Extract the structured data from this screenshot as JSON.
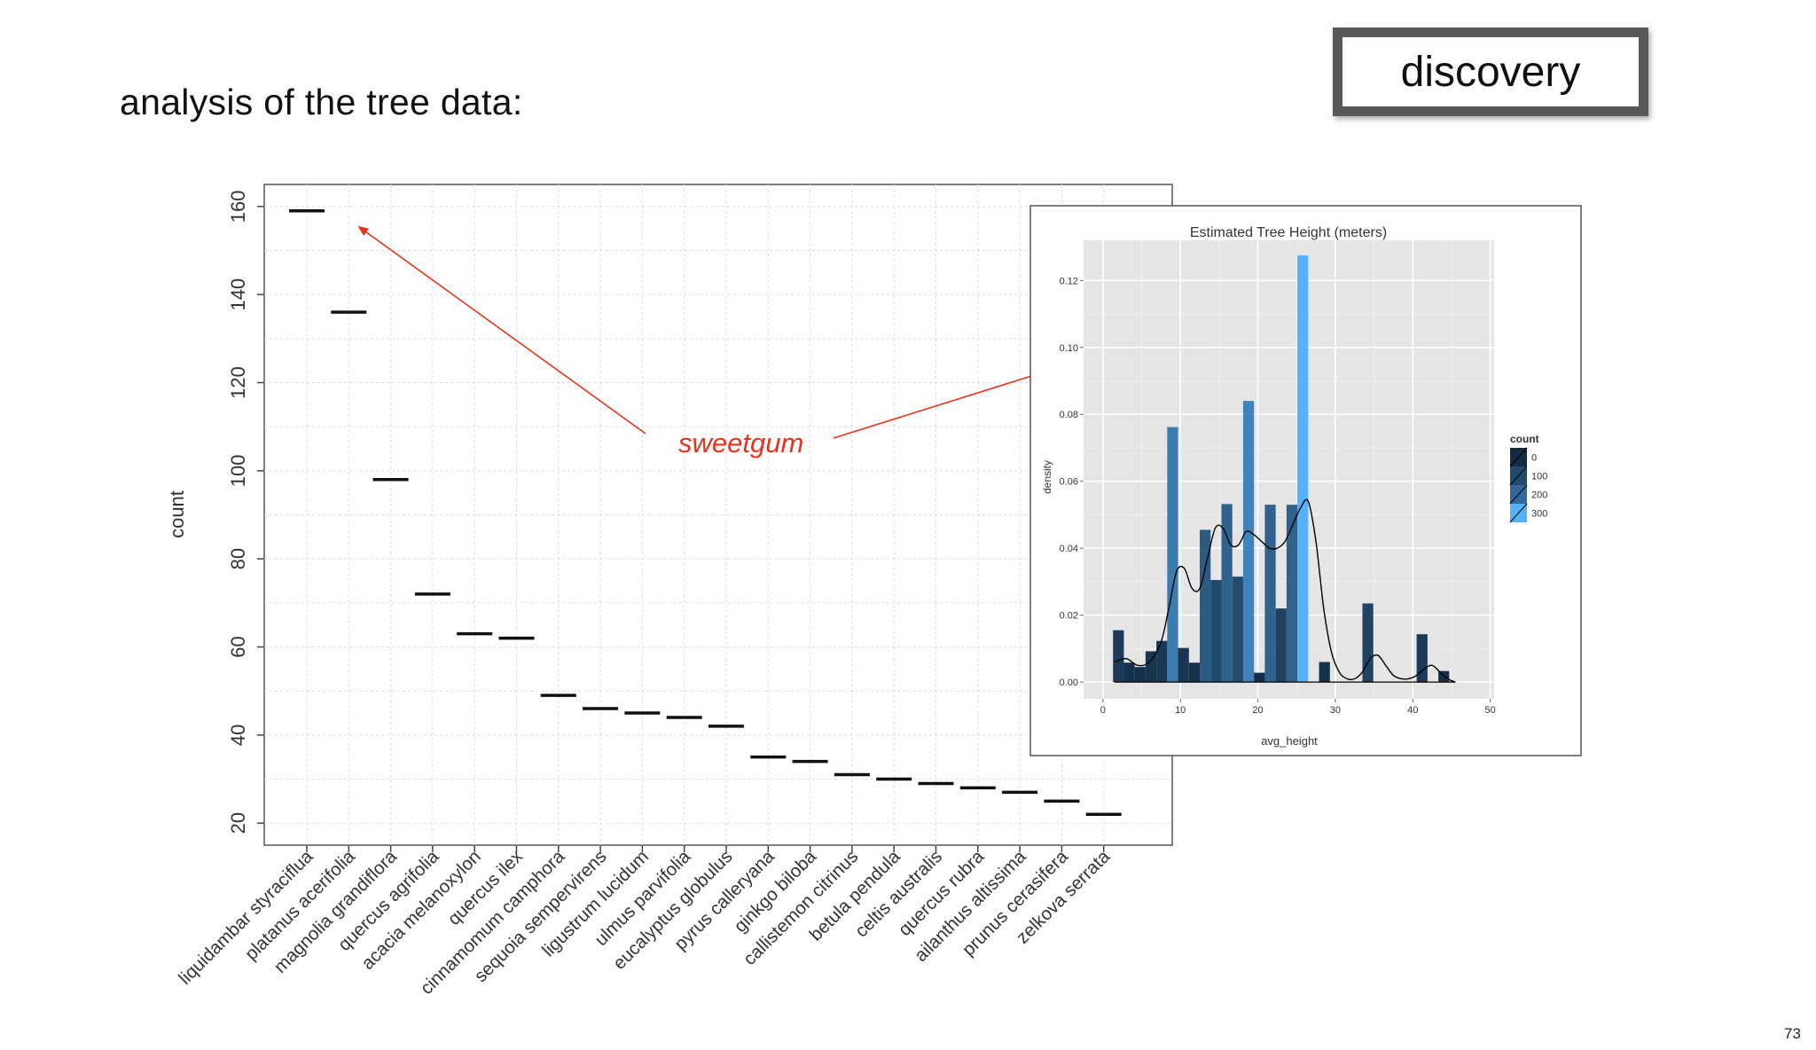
{
  "slide": {
    "title": "analysis of the tree data:",
    "tag": "discovery",
    "page_number": "73"
  },
  "annotation": {
    "text": "sweetgum",
    "color": "#e8321c"
  },
  "chart_data": [
    {
      "type": "scatter",
      "marker": "horizontal dash",
      "title": "",
      "xlabel": "",
      "ylabel": "count",
      "ylim": [
        15,
        165
      ],
      "yticks": [
        20,
        40,
        60,
        80,
        100,
        120,
        140,
        160
      ],
      "grid": true,
      "categories": [
        "liquidambar styraciflua",
        "platanus acerifolia",
        "magnolia grandiflora",
        "quercus agrifolia",
        "acacia melanoxylon",
        "quercus ilex",
        "cinnamomum camphora",
        "sequoia sempervirens",
        "ligustrum lucidum",
        "ulmus parvifolia",
        "eucalyptus globulus",
        "pyrus calleryana",
        "ginkgo biloba",
        "callistemon citrinus",
        "betula pendula",
        "celtis australis",
        "quercus rubra",
        "ailanthus altissima",
        "prunus cerasifera",
        "zelkova serrata"
      ],
      "values": [
        159,
        136,
        98,
        72,
        63,
        62,
        49,
        46,
        45,
        44,
        42,
        35,
        34,
        31,
        30,
        29,
        28,
        27,
        25,
        22
      ]
    },
    {
      "type": "bar",
      "title": "Estimated Tree Height (meters)",
      "xlabel": "avg_height",
      "ylabel": "density",
      "xlim": [
        -2.5,
        50.5
      ],
      "ylim": [
        -0.005,
        0.132
      ],
      "xticks": [
        0,
        10,
        20,
        30,
        40,
        50
      ],
      "yticks": [
        "0.00",
        "0.02",
        "0.04",
        "0.06",
        "0.08",
        "0.10",
        "0.12"
      ],
      "grid": true,
      "background": "#e5e5e5",
      "bin_width": 1.4,
      "bins": [
        {
          "x": 2.0,
          "density": 0.0155,
          "count": 36
        },
        {
          "x": 3.4,
          "density": 0.0058,
          "count": 14
        },
        {
          "x": 4.8,
          "density": 0.0045,
          "count": 11
        },
        {
          "x": 6.2,
          "density": 0.0092,
          "count": 22
        },
        {
          "x": 7.6,
          "density": 0.0123,
          "count": 29
        },
        {
          "x": 9.0,
          "density": 0.0762,
          "count": 180
        },
        {
          "x": 10.4,
          "density": 0.0102,
          "count": 24
        },
        {
          "x": 11.8,
          "density": 0.0058,
          "count": 14
        },
        {
          "x": 13.2,
          "density": 0.0455,
          "count": 107
        },
        {
          "x": 14.6,
          "density": 0.0305,
          "count": 72
        },
        {
          "x": 16.0,
          "density": 0.0532,
          "count": 125
        },
        {
          "x": 17.4,
          "density": 0.0315,
          "count": 74
        },
        {
          "x": 18.8,
          "density": 0.084,
          "count": 198
        },
        {
          "x": 20.2,
          "density": 0.0028,
          "count": 7
        },
        {
          "x": 21.6,
          "density": 0.053,
          "count": 125
        },
        {
          "x": 23.0,
          "density": 0.022,
          "count": 52
        },
        {
          "x": 24.4,
          "density": 0.053,
          "count": 125
        },
        {
          "x": 25.8,
          "density": 0.1275,
          "count": 300
        },
        {
          "x": 28.6,
          "density": 0.006,
          "count": 14
        },
        {
          "x": 34.2,
          "density": 0.0235,
          "count": 55
        },
        {
          "x": 41.2,
          "density": 0.0143,
          "count": 34
        },
        {
          "x": 44.0,
          "density": 0.0033,
          "count": 8
        }
      ],
      "density_curve": {
        "x": [
          1.5,
          3,
          4.5,
          6,
          7.5,
          8.5,
          9.5,
          10.5,
          11.5,
          12.5,
          13.5,
          14.5,
          15.5,
          16.5,
          17.5,
          18.5,
          19.5,
          20.5,
          21.5,
          22.5,
          23.5,
          24.5,
          25.5,
          26.5,
          27.5,
          28.5,
          29.5,
          30.5,
          31.5,
          32.5,
          33.5,
          34.5,
          35.5,
          36.5,
          37.5,
          38.5,
          39.5,
          40.5,
          41.5,
          42.5,
          43.5,
          44.5,
          45.5
        ],
        "y": [
          0.006,
          0.007,
          0.005,
          0.006,
          0.012,
          0.022,
          0.033,
          0.034,
          0.028,
          0.028,
          0.037,
          0.046,
          0.046,
          0.041,
          0.041,
          0.045,
          0.044,
          0.042,
          0.04,
          0.04,
          0.042,
          0.047,
          0.052,
          0.054,
          0.042,
          0.022,
          0.009,
          0.003,
          0.001,
          0.001,
          0.003,
          0.007,
          0.008,
          0.005,
          0.002,
          0.001,
          0.001,
          0.002,
          0.004,
          0.005,
          0.003,
          0.001,
          0.0
        ]
      },
      "legend": {
        "title": "count",
        "labels": [
          "0",
          "100",
          "200",
          "300"
        ],
        "colors": [
          "#132b43",
          "#22496e",
          "#32689b",
          "#56b1f7"
        ],
        "placement": "right"
      }
    }
  ]
}
